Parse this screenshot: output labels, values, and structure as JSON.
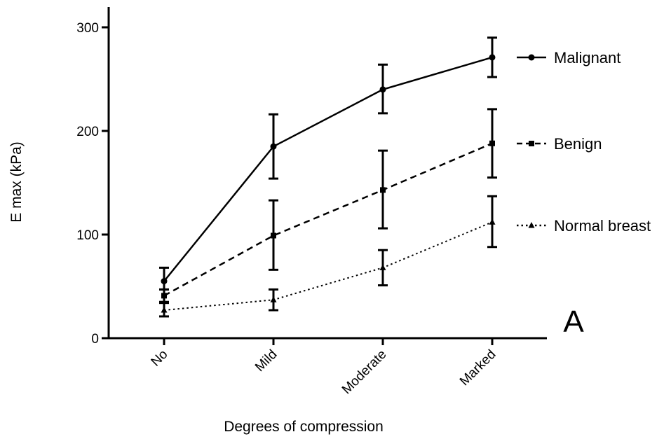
{
  "chart_data": {
    "type": "line",
    "title": "",
    "xlabel": "Degrees of compression",
    "ylabel": "E max (kPa)",
    "categories": [
      "No",
      "Mild",
      "Moderate",
      "Marked"
    ],
    "ylim": [
      0,
      320
    ],
    "yticks": [
      0,
      100,
      200,
      300
    ],
    "grid": false,
    "legend_position": "right",
    "panel_label": "A",
    "series": [
      {
        "name": "Malignant",
        "values": [
          55,
          185,
          240,
          271
        ],
        "err_low": [
          47,
          154,
          217,
          252
        ],
        "err_high": [
          68,
          216,
          264,
          290
        ],
        "line_style": "solid",
        "marker": "circle",
        "color": "#000000"
      },
      {
        "name": "Benign",
        "values": [
          41,
          99,
          143,
          188
        ],
        "err_low": [
          35,
          66,
          106,
          155
        ],
        "err_high": [
          47,
          133,
          181,
          221
        ],
        "line_style": "dashed",
        "marker": "square",
        "color": "#000000"
      },
      {
        "name": "Normal breast",
        "values": [
          27,
          37,
          68,
          112
        ],
        "err_low": [
          21,
          27,
          51,
          88
        ],
        "err_high": [
          34,
          47,
          85,
          137
        ],
        "line_style": "dotted",
        "marker": "triangle",
        "color": "#000000"
      }
    ]
  }
}
